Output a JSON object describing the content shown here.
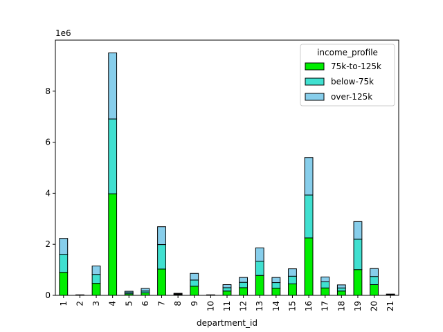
{
  "chart_data": {
    "type": "bar",
    "stacked": true,
    "title": "",
    "xlabel": "department_id",
    "ylabel": "",
    "y_multiplier_label": "1e6",
    "ylim": [
      0,
      10000000
    ],
    "y_ticks": [
      0,
      2000000,
      4000000,
      6000000,
      8000000
    ],
    "y_tick_labels": [
      "0",
      "2",
      "4",
      "6",
      "8"
    ],
    "grid": false,
    "legend": {
      "title": "income_profile",
      "placement": "top-right"
    },
    "categories": [
      "1",
      "2",
      "3",
      "4",
      "5",
      "6",
      "7",
      "8",
      "9",
      "10",
      "11",
      "12",
      "13",
      "14",
      "15",
      "16",
      "17",
      "18",
      "19",
      "20",
      "21"
    ],
    "series": [
      {
        "name": "75k-to-125k",
        "color": "#00ee00",
        "values": [
          900000,
          10000,
          470000,
          3980000,
          60000,
          100000,
          1030000,
          30000,
          360000,
          10000,
          170000,
          300000,
          780000,
          280000,
          450000,
          2250000,
          290000,
          170000,
          1010000,
          420000,
          20000
        ]
      },
      {
        "name": "below-75k",
        "color": "#40e0d0",
        "values": [
          710000,
          5000,
          350000,
          2930000,
          50000,
          70000,
          960000,
          25000,
          240000,
          5000,
          130000,
          210000,
          560000,
          220000,
          300000,
          1680000,
          240000,
          120000,
          1190000,
          320000,
          15000
        ]
      },
      {
        "name": "over-125k",
        "color": "#87ceeb",
        "values": [
          620000,
          5000,
          330000,
          2590000,
          50000,
          100000,
          700000,
          25000,
          260000,
          5000,
          120000,
          190000,
          520000,
          200000,
          290000,
          1470000,
          190000,
          120000,
          690000,
          310000,
          15000
        ]
      }
    ]
  }
}
